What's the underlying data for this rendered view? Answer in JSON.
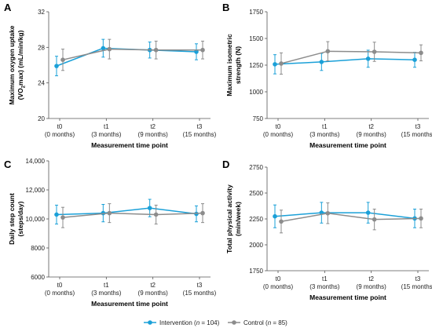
{
  "colors": {
    "intervention": "#1aa0d8",
    "control": "#8c8c8c",
    "axis": "#555555"
  },
  "legend": {
    "intervention_pre": "Intervention (",
    "intervention_n": "n",
    "intervention_post": " = 104)",
    "control_pre": "Control (",
    "control_n": "n",
    "control_post": " = 85)"
  },
  "chart_data": [
    {
      "panel": "A",
      "type": "line",
      "ylabel_line1": "Maximum oxygen uptake",
      "ylabel_line2_pre": "(VO",
      "ylabel_line2_sub": "2",
      "ylabel_line2_post": "max) (mL/min/kg)",
      "xlabel": "Measurement time point",
      "ylim": [
        20,
        32
      ],
      "yticks": [
        "20",
        "24",
        "28",
        "32"
      ],
      "ytick_values": [
        20,
        24,
        28,
        32
      ],
      "categories": [
        {
          "line1": "t0",
          "line2": "(0 months)"
        },
        {
          "line1": "t1",
          "line2": "(3 months)"
        },
        {
          "line1": "t2",
          "line2": "(9 months)"
        },
        {
          "line1": "t3",
          "line2": "(15 months)"
        }
      ],
      "series": [
        {
          "name": "Intervention",
          "values": [
            25.9,
            27.9,
            27.7,
            27.5
          ],
          "err": [
            1.1,
            1.0,
            0.9,
            0.9
          ]
        },
        {
          "name": "Control",
          "values": [
            26.6,
            27.8,
            27.7,
            27.7
          ],
          "err": [
            1.2,
            1.1,
            1.0,
            1.0
          ]
        }
      ]
    },
    {
      "panel": "B",
      "type": "line",
      "ylabel_line1": "Maximum isometric",
      "ylabel_line2_pre": "strength (N)",
      "ylabel_line2_sub": "",
      "ylabel_line2_post": "",
      "xlabel": "Measurement time point",
      "ylim": [
        750,
        1750
      ],
      "yticks": [
        "750",
        "1000",
        "1250",
        "1500",
        "1750"
      ],
      "ytick_values": [
        750,
        1000,
        1250,
        1500,
        1750
      ],
      "categories": [
        {
          "line1": "t0",
          "line2": "(0 months)"
        },
        {
          "line1": "t1",
          "line2": "(3 months)"
        },
        {
          "line1": "t2",
          "line2": "(9 months)"
        },
        {
          "line1": "t3",
          "line2": "(15 months)"
        }
      ],
      "series": [
        {
          "name": "Intervention",
          "values": [
            1258,
            1280,
            1310,
            1300
          ],
          "err": [
            90,
            80,
            80,
            70
          ]
        },
        {
          "name": "Control",
          "values": [
            1265,
            1380,
            1375,
            1365
          ],
          "err": [
            100,
            90,
            90,
            75
          ]
        }
      ]
    },
    {
      "panel": "C",
      "type": "line",
      "ylabel_line1": "Daily step count",
      "ylabel_line2_pre": "(steps/day)",
      "ylabel_line2_sub": "",
      "ylabel_line2_post": "",
      "xlabel": "Measurement time point",
      "ylim": [
        6000,
        14000
      ],
      "yticks": [
        "6000",
        "8000",
        "10,000",
        "12,000",
        "14,000"
      ],
      "ytick_values": [
        6000,
        8000,
        10000,
        12000,
        14000
      ],
      "categories": [
        {
          "line1": "t0",
          "line2": "(0 months)"
        },
        {
          "line1": "t1",
          "line2": "(3 months)"
        },
        {
          "line1": "t2",
          "line2": "(9 months)"
        },
        {
          "line1": "t3",
          "line2": "(15 months)"
        }
      ],
      "series": [
        {
          "name": "Intervention",
          "values": [
            10300,
            10400,
            10750,
            10350
          ],
          "err": [
            650,
            600,
            600,
            550
          ]
        },
        {
          "name": "Control",
          "values": [
            10100,
            10400,
            10300,
            10400
          ],
          "err": [
            700,
            650,
            650,
            650
          ]
        }
      ]
    },
    {
      "panel": "D",
      "type": "line",
      "ylabel_line1": "Total physical activity",
      "ylabel_line2_pre": "(min/week)",
      "ylabel_line2_sub": "",
      "ylabel_line2_post": "",
      "xlabel": "Measurement time point",
      "ylim": [
        1750,
        2750
      ],
      "yticks": [
        "1750",
        "2000",
        "2250",
        "2500",
        "2750"
      ],
      "ytick_values": [
        1750,
        2000,
        2250,
        2500,
        2750
      ],
      "categories": [
        {
          "line1": "t0",
          "line2": "(0 months)"
        },
        {
          "line1": "t1",
          "line2": "(3 months)"
        },
        {
          "line1": "t2",
          "line2": "(9 months)"
        },
        {
          "line1": "t3",
          "line2": "(15 months)"
        }
      ],
      "series": [
        {
          "name": "Intervention",
          "values": [
            2275,
            2310,
            2310,
            2255
          ],
          "err": [
            110,
            100,
            100,
            90
          ]
        },
        {
          "name": "Control",
          "values": [
            2225,
            2305,
            2245,
            2255
          ],
          "err": [
            110,
            100,
            100,
            90
          ]
        }
      ]
    }
  ]
}
